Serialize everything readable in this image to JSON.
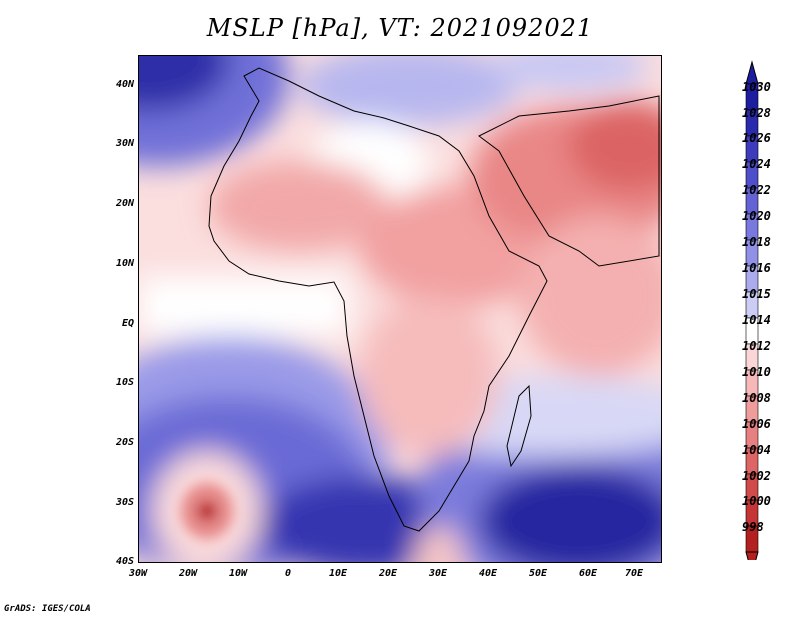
{
  "title": "MSLP [hPa], VT: 2021092021",
  "credit": "GrADS: IGES/COLA",
  "map": {
    "lat_labels": [
      "40N",
      "30N",
      "20N",
      "10N",
      "EQ",
      "10S",
      "20S",
      "30S",
      "40S"
    ],
    "lon_labels": [
      "30W",
      "20W",
      "10W",
      "0",
      "10E",
      "20E",
      "30E",
      "40E",
      "50E",
      "60E",
      "70E"
    ]
  },
  "legend": {
    "labels": [
      "1030",
      "1028",
      "1026",
      "1024",
      "1022",
      "1020",
      "1018",
      "1016",
      "1015",
      "1014",
      "1012",
      "1010",
      "1008",
      "1006",
      "1004",
      "1002",
      "1000",
      "998"
    ],
    "colors": [
      "#1d1da0",
      "#2a2aad",
      "#3c3cbd",
      "#4f4fcb",
      "#6363d6",
      "#7878df",
      "#9090e6",
      "#ababee",
      "#ccccf5",
      "#ffffff",
      "#fbd6d6",
      "#f6b8b8",
      "#ef9c9c",
      "#e78080",
      "#dd6565",
      "#d24b4b",
      "#c53535",
      "#b42020"
    ]
  }
}
